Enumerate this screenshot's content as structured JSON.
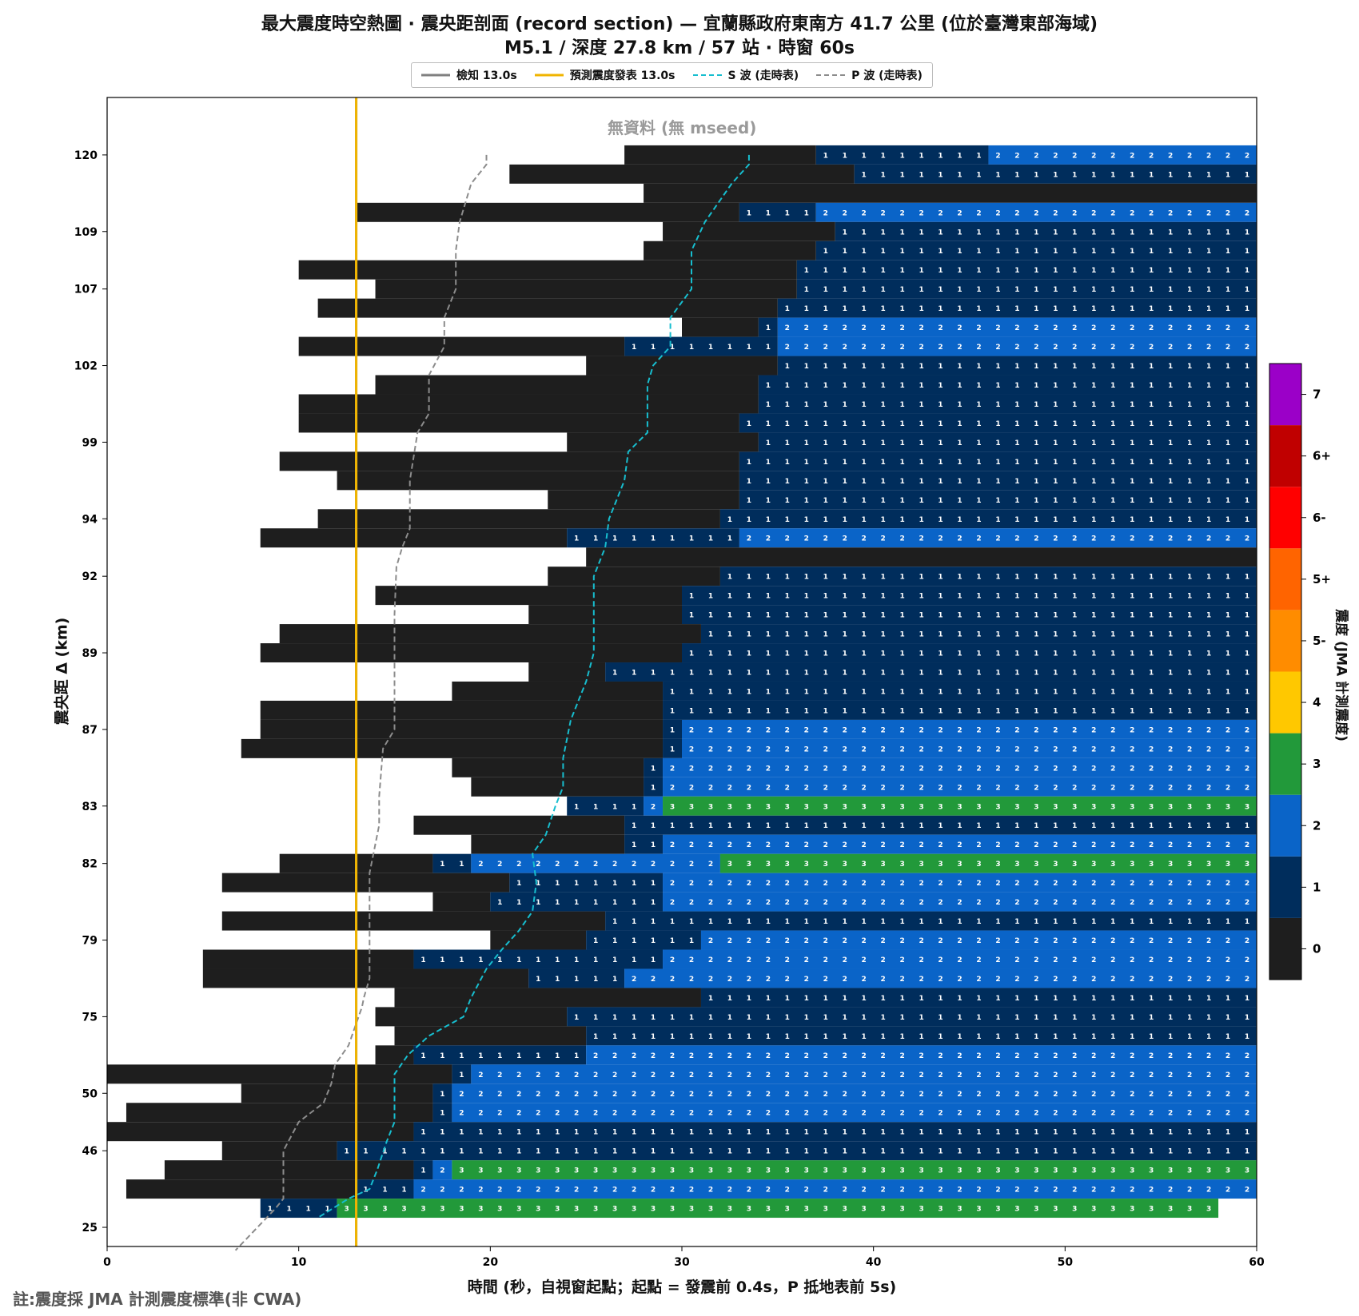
{
  "title_line1": "最大震度時空熱圖 · 震央距剖面 (record section) — 宜蘭縣政府東南方 41.7 公里 (位於臺灣東部海域)",
  "title_line2": "M5.1 / 深度 27.8 km / 57 站 · 時窗 60s",
  "footnote": "註:震度採 JMA 計測震度標準(非 CWA)",
  "no_data_label": "無資料 (無 mseed)",
  "legend": {
    "detect": "檢知 13.0s",
    "forecast": "預測震度發表 13.0s",
    "s_wave": "S 波 (走時表)",
    "p_wave": "P 波 (走時表)"
  },
  "colors": {
    "detect": "#808080",
    "forecast": "#f0b400",
    "s_wave": "#17becf",
    "p_wave": "#8c8c8c",
    "no_record": "#ffffff",
    "intensity": {
      "0": "#1e1e1e",
      "1": "#002d5c",
      "2": "#0a64c8",
      "3": "#22993a",
      "4": "#ffc800",
      "5-": "#ff8c00",
      "5+": "#ff6400",
      "6-": "#ff0000",
      "6+": "#c00000",
      "7": "#9b00c8"
    }
  },
  "chart_data": {
    "type": "heatmap",
    "xlabel": "時間 (秒，自視窗起點；起點 = 發震前 0.4s，P 抵地表前 5s)",
    "ylabel": "震央距 Δ (km)",
    "colorbar_label": "震度 (JMA 計測震度)",
    "colorbar_ticks": [
      "0",
      "1",
      "2",
      "3",
      "4",
      "5-",
      "5+",
      "6-",
      "6+",
      "7"
    ],
    "xlim": [
      0,
      60
    ],
    "x_ticks": [
      0,
      10,
      20,
      30,
      40,
      50,
      60
    ],
    "y_tick_labels": [
      "120",
      "109",
      "107",
      "102",
      "99",
      "94",
      "92",
      "89",
      "87",
      "83",
      "82",
      "79",
      "75",
      "50",
      "46",
      "25"
    ],
    "y_tick_rows": [
      1,
      5,
      8,
      12,
      16,
      20,
      23,
      27,
      31,
      35,
      38,
      42,
      46,
      50,
      53,
      57
    ],
    "detect_time_s": 13.0,
    "forecast_time_s": 13.0,
    "rows": [
      {
        "row": 1,
        "from": 27,
        "segs": [
          [
            37,
            0
          ],
          [
            46,
            1
          ],
          [
            60,
            2
          ]
        ]
      },
      {
        "row": 2,
        "from": 21,
        "segs": [
          [
            39,
            0
          ],
          [
            60,
            1
          ]
        ]
      },
      {
        "row": 3,
        "from": 28,
        "segs": [
          [
            60,
            0
          ]
        ]
      },
      {
        "row": 4,
        "from": 13,
        "segs": [
          [
            33,
            0
          ],
          [
            37,
            1
          ],
          [
            60,
            2
          ]
        ]
      },
      {
        "row": 5,
        "from": 29,
        "segs": [
          [
            38,
            0
          ],
          [
            60,
            1
          ]
        ]
      },
      {
        "row": 6,
        "from": 28,
        "segs": [
          [
            37,
            0
          ],
          [
            60,
            1
          ]
        ]
      },
      {
        "row": 7,
        "from": 10,
        "segs": [
          [
            36,
            0
          ],
          [
            60,
            1
          ]
        ]
      },
      {
        "row": 8,
        "from": 14,
        "segs": [
          [
            36,
            0
          ],
          [
            60,
            1
          ]
        ]
      },
      {
        "row": 9,
        "from": 11,
        "segs": [
          [
            35,
            0
          ],
          [
            60,
            1
          ]
        ]
      },
      {
        "row": 10,
        "from": 30,
        "segs": [
          [
            34,
            0
          ],
          [
            35,
            1
          ],
          [
            60,
            2
          ]
        ]
      },
      {
        "row": 11,
        "from": 10,
        "segs": [
          [
            27,
            0
          ],
          [
            35,
            1
          ],
          [
            60,
            2
          ]
        ]
      },
      {
        "row": 12,
        "from": 25,
        "segs": [
          [
            35,
            0
          ],
          [
            60,
            1
          ]
        ]
      },
      {
        "row": 13,
        "from": 14,
        "segs": [
          [
            34,
            0
          ],
          [
            60,
            1
          ]
        ]
      },
      {
        "row": 14,
        "from": 10,
        "segs": [
          [
            34,
            0
          ],
          [
            60,
            1
          ]
        ]
      },
      {
        "row": 15,
        "from": 10,
        "segs": [
          [
            33,
            0
          ],
          [
            60,
            1
          ]
        ]
      },
      {
        "row": 16,
        "from": 24,
        "segs": [
          [
            34,
            0
          ],
          [
            60,
            1
          ]
        ]
      },
      {
        "row": 17,
        "from": 9,
        "segs": [
          [
            33,
            0
          ],
          [
            60,
            1
          ]
        ]
      },
      {
        "row": 18,
        "from": 12,
        "segs": [
          [
            33,
            0
          ],
          [
            60,
            1
          ]
        ]
      },
      {
        "row": 19,
        "from": 23,
        "segs": [
          [
            33,
            0
          ],
          [
            60,
            1
          ]
        ]
      },
      {
        "row": 20,
        "from": 11,
        "segs": [
          [
            32,
            0
          ],
          [
            60,
            1
          ]
        ]
      },
      {
        "row": 21,
        "from": 8,
        "segs": [
          [
            24,
            0
          ],
          [
            33,
            1
          ],
          [
            60,
            2
          ]
        ]
      },
      {
        "row": 22,
        "from": 25,
        "segs": [
          [
            60,
            0
          ]
        ]
      },
      {
        "row": 23,
        "from": 23,
        "segs": [
          [
            32,
            0
          ],
          [
            60,
            1
          ]
        ]
      },
      {
        "row": 24,
        "from": 14,
        "segs": [
          [
            30,
            0
          ],
          [
            60,
            1
          ]
        ]
      },
      {
        "row": 25,
        "from": 22,
        "segs": [
          [
            30,
            0
          ],
          [
            60,
            1
          ]
        ]
      },
      {
        "row": 26,
        "from": 9,
        "segs": [
          [
            31,
            0
          ],
          [
            60,
            1
          ]
        ]
      },
      {
        "row": 27,
        "from": 8,
        "segs": [
          [
            30,
            0
          ],
          [
            60,
            1
          ]
        ]
      },
      {
        "row": 28,
        "from": 22,
        "segs": [
          [
            26,
            0
          ],
          [
            30,
            1
          ],
          [
            60,
            1
          ]
        ]
      },
      {
        "row": 29,
        "from": 18,
        "segs": [
          [
            29,
            0
          ],
          [
            60,
            1
          ]
        ]
      },
      {
        "row": 30,
        "from": 8,
        "segs": [
          [
            29,
            0
          ],
          [
            60,
            1
          ]
        ]
      },
      {
        "row": 31,
        "from": 8,
        "segs": [
          [
            29,
            0
          ],
          [
            30,
            1
          ],
          [
            60,
            2
          ]
        ]
      },
      {
        "row": 32,
        "from": 7,
        "segs": [
          [
            29,
            0
          ],
          [
            30,
            1
          ],
          [
            60,
            2
          ]
        ]
      },
      {
        "row": 33,
        "from": 18,
        "segs": [
          [
            28,
            0
          ],
          [
            29,
            1
          ],
          [
            60,
            2
          ]
        ]
      },
      {
        "row": 34,
        "from": 19,
        "segs": [
          [
            28,
            0
          ],
          [
            29,
            1
          ],
          [
            60,
            2
          ]
        ]
      },
      {
        "row": 35,
        "from": 24,
        "segs": [
          [
            28,
            1
          ],
          [
            29,
            2
          ],
          [
            60,
            3
          ]
        ]
      },
      {
        "row": 36,
        "from": 16,
        "segs": [
          [
            27,
            0
          ],
          [
            60,
            1
          ]
        ]
      },
      {
        "row": 37,
        "from": 19,
        "segs": [
          [
            27,
            0
          ],
          [
            29,
            1
          ],
          [
            60,
            2
          ]
        ]
      },
      {
        "row": 38,
        "from": 9,
        "segs": [
          [
            17,
            0
          ],
          [
            19,
            1
          ],
          [
            32,
            2
          ],
          [
            60,
            3
          ]
        ]
      },
      {
        "row": 39,
        "from": 6,
        "segs": [
          [
            21,
            0
          ],
          [
            29,
            1
          ],
          [
            60,
            2
          ]
        ]
      },
      {
        "row": 40,
        "from": 17,
        "segs": [
          [
            20,
            0
          ],
          [
            29,
            1
          ],
          [
            60,
            2
          ]
        ]
      },
      {
        "row": 41,
        "from": 6,
        "segs": [
          [
            26,
            0
          ],
          [
            60,
            1
          ]
        ]
      },
      {
        "row": 42,
        "from": 20,
        "segs": [
          [
            25,
            0
          ],
          [
            31,
            1
          ],
          [
            60,
            2
          ]
        ]
      },
      {
        "row": 43,
        "from": 5,
        "segs": [
          [
            16,
            0
          ],
          [
            29,
            1
          ],
          [
            60,
            2
          ]
        ]
      },
      {
        "row": 44,
        "from": 5,
        "segs": [
          [
            22,
            0
          ],
          [
            27,
            1
          ],
          [
            60,
            2
          ]
        ]
      },
      {
        "row": 45,
        "from": 15,
        "segs": [
          [
            31,
            0
          ],
          [
            60,
            1
          ]
        ]
      },
      {
        "row": 46,
        "from": 14,
        "segs": [
          [
            24,
            0
          ],
          [
            60,
            1
          ]
        ]
      },
      {
        "row": 47,
        "from": 15,
        "segs": [
          [
            25,
            0
          ],
          [
            60,
            1
          ]
        ]
      },
      {
        "row": 48,
        "from": 14,
        "segs": [
          [
            16,
            0
          ],
          [
            25,
            1
          ],
          [
            60,
            2
          ]
        ]
      },
      {
        "row": 49,
        "from": 0,
        "segs": [
          [
            18,
            0
          ],
          [
            19,
            1
          ],
          [
            60,
            2
          ]
        ]
      },
      {
        "row": 50,
        "from": 7,
        "segs": [
          [
            17,
            0
          ],
          [
            18,
            1
          ],
          [
            60,
            2
          ]
        ]
      },
      {
        "row": 51,
        "from": 1,
        "segs": [
          [
            17,
            0
          ],
          [
            18,
            1
          ],
          [
            60,
            2
          ]
        ]
      },
      {
        "row": 52,
        "from": 0,
        "segs": [
          [
            16,
            0
          ],
          [
            60,
            1
          ]
        ]
      },
      {
        "row": 53,
        "from": 6,
        "segs": [
          [
            12,
            0
          ],
          [
            60,
            1
          ]
        ]
      },
      {
        "row": 54,
        "from": 3,
        "segs": [
          [
            16,
            0
          ],
          [
            17,
            1
          ],
          [
            18,
            2
          ],
          [
            60,
            3
          ]
        ]
      },
      {
        "row": 55,
        "from": 1,
        "segs": [
          [
            13,
            0
          ],
          [
            16,
            1
          ],
          [
            60,
            2
          ]
        ]
      },
      {
        "row": 56,
        "from": 8,
        "segs": [
          [
            12,
            1
          ],
          [
            58,
            3
          ]
        ]
      }
    ],
    "p_wave_curve": [
      [
        19.8,
        1
      ],
      [
        19.8,
        1.5
      ],
      [
        19,
        2.5
      ],
      [
        18.4,
        4.5
      ],
      [
        18.2,
        6
      ],
      [
        18.2,
        8
      ],
      [
        17.6,
        9.5
      ],
      [
        17.6,
        11
      ],
      [
        16.8,
        12.5
      ],
      [
        16.8,
        14.5
      ],
      [
        16.2,
        15.5
      ],
      [
        15.8,
        18
      ],
      [
        15.8,
        20.5
      ],
      [
        15.4,
        21.5
      ],
      [
        15.1,
        22.5
      ],
      [
        15,
        25
      ],
      [
        15,
        31
      ],
      [
        14.4,
        32
      ],
      [
        14.2,
        34.5
      ],
      [
        14.2,
        36
      ],
      [
        13.9,
        37.5
      ],
      [
        13.7,
        38.5
      ],
      [
        13.7,
        44
      ],
      [
        13.4,
        45
      ],
      [
        13.3,
        45.5
      ],
      [
        12.6,
        47.5
      ],
      [
        11.9,
        48.5
      ],
      [
        11.7,
        49.5
      ],
      [
        11.3,
        50.5
      ],
      [
        10,
        51.5
      ],
      [
        9.2,
        53
      ],
      [
        9.2,
        55.5
      ],
      [
        8.8,
        56
      ],
      [
        6.7,
        58.2
      ]
    ],
    "s_wave_curve": [
      [
        33.5,
        1
      ],
      [
        33.5,
        1.5
      ],
      [
        32.6,
        2.5
      ],
      [
        31.2,
        4.5
      ],
      [
        30.5,
        6
      ],
      [
        30.5,
        8
      ],
      [
        29.4,
        9.5
      ],
      [
        29.4,
        11
      ],
      [
        28.5,
        12
      ],
      [
        28.2,
        13
      ],
      [
        28.2,
        15.5
      ],
      [
        27.2,
        16.5
      ],
      [
        27,
        18
      ],
      [
        26.2,
        20
      ],
      [
        26,
        21.5
      ],
      [
        25.6,
        22.5
      ],
      [
        25.4,
        23
      ],
      [
        25.4,
        27
      ],
      [
        25,
        28.5
      ],
      [
        24.2,
        30.5
      ],
      [
        23.8,
        32.5
      ],
      [
        23.8,
        34
      ],
      [
        23.4,
        35
      ],
      [
        22.9,
        36.5
      ],
      [
        22.2,
        37.5
      ],
      [
        22.4,
        39
      ],
      [
        22.2,
        40.5
      ],
      [
        21.5,
        41.5
      ],
      [
        20.6,
        42.5
      ],
      [
        19.8,
        43.5
      ],
      [
        19,
        45
      ],
      [
        18.6,
        46
      ],
      [
        16.8,
        47
      ],
      [
        15.7,
        48
      ],
      [
        15,
        49
      ],
      [
        15,
        51.5
      ],
      [
        14.6,
        52.5
      ],
      [
        14.1,
        54
      ],
      [
        13.7,
        55
      ],
      [
        12.6,
        55.5
      ],
      [
        11,
        56.5
      ]
    ]
  }
}
